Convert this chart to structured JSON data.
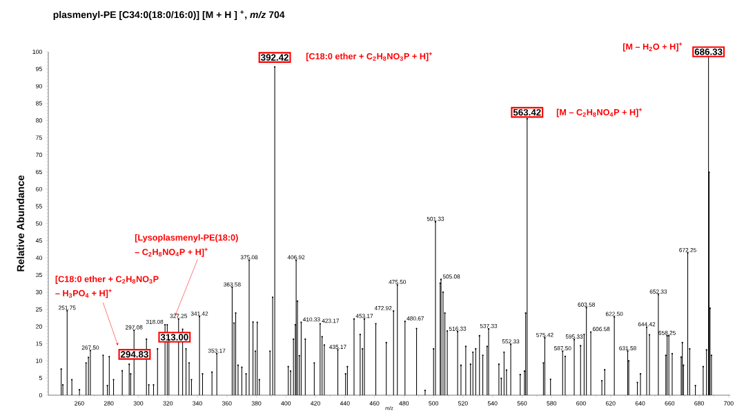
{
  "chart_data": {
    "type": "lollipop",
    "title": "plasmenyl-PE [C34:0(18:0/16:0)] [M + H ] $^{+}$, *m/z* 704",
    "xlabel": "m/z",
    "ylabel": "Relative Abundance",
    "xlim": [
      239,
      701
    ],
    "xticks": [
      260,
      280,
      300,
      320,
      340,
      360,
      380,
      400,
      420,
      440,
      460,
      480,
      500,
      520,
      540,
      560,
      580,
      600,
      620,
      640,
      660,
      680,
      700
    ],
    "ylim": [
      0,
      100
    ],
    "yticks": [
      0,
      5,
      10,
      15,
      20,
      25,
      30,
      35,
      40,
      45,
      50,
      55,
      60,
      65,
      70,
      75,
      80,
      85,
      90,
      95,
      100
    ],
    "grid": false,
    "series": [
      {
        "color": "#000000",
        "values": [
          7.6,
          3,
          24.6,
          4.5,
          1.6,
          9.4,
          11,
          13,
          11.6,
          2.8,
          11.2,
          4.5,
          7.1,
          9,
          6.2,
          18.9,
          16.3,
          3,
          3,
          13.5,
          20.5,
          20.5,
          16,
          22.2,
          19.2,
          13.5,
          9.4,
          4.5,
          22.9,
          6.2,
          6.7,
          12.1,
          31.4,
          21,
          23.9,
          8.7,
          8.1,
          6.2,
          39.3,
          21.3,
          12.8,
          21.2,
          4.5,
          12.8,
          28.5,
          95.6,
          8.3,
          7,
          16.3,
          20.5,
          39.3,
          27.4,
          11.5,
          21.2,
          16.3,
          9.4,
          20.8,
          17,
          14.6,
          13.2,
          6.2,
          8.3,
          22.2,
          17.7,
          13.5,
          22.2,
          20.8,
          15.3,
          24.5,
          32.1,
          21.5,
          19.4,
          1.4,
          13.5,
          50.5,
          32.6,
          33.7,
          30,
          23.9,
          18.7,
          18.5,
          8.7,
          14.2,
          9,
          12.5,
          13.5,
          17.3,
          11.6,
          14.2,
          19.3,
          9,
          4.9,
          12.5,
          7.3,
          14.8,
          6,
          7,
          23.9,
          80.5,
          9.4,
          16.7,
          4.6,
          12.8,
          11.3,
          16.2,
          14.4,
          17.7,
          25.5,
          18.4,
          4.2,
          7.4,
          22.8,
          12.8,
          10,
          3.7,
          6.2,
          19.8,
          17.6,
          29.3,
          11.6,
          17.3,
          17.3,
          12.1,
          11.1,
          15.3,
          8.7,
          41.4,
          13.5,
          2.8,
          8.3,
          13.2,
          100,
          64.9,
          25.3,
          11.6
        ]
      }
    ],
    "x": [
      247.74,
      248.86,
      251.75,
      254.96,
      260.1,
      264.58,
      266.19,
      267.5,
      276.13,
      279.0,
      280.3,
      283.2,
      289.1,
      293.8,
      294.83,
      297.08,
      305.5,
      307.1,
      310.3,
      313.0,
      318.08,
      319.6,
      320.7,
      327.25,
      330.0,
      332.3,
      334.4,
      336.0,
      341.42,
      343.5,
      349.9,
      353.17,
      363.58,
      364.84,
      365.96,
      367.57,
      370.13,
      373.0,
      375.08,
      377.67,
      379.28,
      380.56,
      382.0,
      389.2,
      391.0,
      392.42,
      401.56,
      403.17,
      405.09,
      406.37,
      406.92,
      407.82,
      409.1,
      410.33,
      413.11,
      419.2,
      423.17,
      424.5,
      426.0,
      435.17,
      440.4,
      441.66,
      446.15,
      450.3,
      451.9,
      453.17,
      460.9,
      468.0,
      472.92,
      475.5,
      480.67,
      488.5,
      494.3,
      500.04,
      501.33,
      504.53,
      505.08,
      506.45,
      507.7,
      509.33,
      516.33,
      518.6,
      521.85,
      525.06,
      526.7,
      528.6,
      531.15,
      533.4,
      536.3,
      537.33,
      544.3,
      545.9,
      547.8,
      549.44,
      552.33,
      558.74,
      561.63,
      562.43,
      563.42,
      574.46,
      575.42,
      579.27,
      587.5,
      589.2,
      595.33,
      599.64,
      602.05,
      603.58,
      606.58,
      614.08,
      616.0,
      622.5,
      631.58,
      632.3,
      638.13,
      640.22,
      644.42,
      646.3,
      652.33,
      657.38,
      658.25,
      659.46,
      661.71,
      667.8,
      668.6,
      669.4,
      672.25,
      673.6,
      677.43,
      682.72,
      684.97,
      686.33,
      686.73,
      687.37,
      688.33
    ],
    "annotations": [
      {
        "text": "392.42",
        "x": 392.42,
        "y": 95.6
      },
      {
        "text": "563.42",
        "x": 563.42,
        "y": 80.5
      },
      {
        "text": "686.33",
        "x": 686.33,
        "y": 100
      },
      {
        "text": "294.83",
        "x": 294.83,
        "y": 6.2
      },
      {
        "text": "313.00",
        "x": 313.0,
        "y": 13.5
      },
      "[C18:0  ether + C$_{2}$H$_{8}$NO$_{3}$P  + H]$^{+}$",
      "[M – C$_{2}$H$_{8}$NO$_{4}$P  + H]$^{+}$",
      "[M – H$_{2}$O + H]$^{+}$",
      "[Lysoplasmenyl-PE(18:0)",
      {
        "text": "– C$_{2}$H$_{8}$NO$_{4}$P  + H]$^{+}$",
        "x": 327.25,
        "y": 22.2
      },
      "[C18:0  ether + C$_{2}$H$_{8}$NO$_{3}$P",
      "– H$_{3}$PO$_{4}$ + H]$^{+}$",
      {
        "text": "251.75",
        "x": 251.75,
        "y": 24.6
      },
      {
        "text": "267.50",
        "x": 267.5,
        "y": 13
      },
      {
        "text": "297.08",
        "x": 297.08,
        "y": 18.9
      },
      {
        "text": "318.08",
        "x": 318.08,
        "y": 20.5
      },
      {
        "text": "327.25",
        "x": 327.25,
        "y": 22.2
      },
      {
        "text": "341.42",
        "x": 341.42,
        "y": 22.9
      },
      {
        "text": "353.17",
        "x": 353.17,
        "y": 12.1
      },
      {
        "text": "363.58",
        "x": 363.58,
        "y": 31.4
      },
      {
        "text": "375.08",
        "x": 375.08,
        "y": 39.3
      },
      {
        "text": "406.92",
        "x": 406.92,
        "y": 39.3
      },
      {
        "text": "410.33",
        "x": 410.33,
        "y": 21.2
      },
      {
        "text": "423.17",
        "x": 423.17,
        "y": 20.8
      },
      {
        "text": "435.17",
        "x": 435.17,
        "y": 13.2
      },
      {
        "text": "453.17",
        "x": 453.17,
        "y": 22.2
      },
      {
        "text": "472.92",
        "x": 472.92,
        "y": 24.5
      },
      {
        "text": "475.50",
        "x": 475.5,
        "y": 32.1
      },
      {
        "text": "480.67",
        "x": 480.67,
        "y": 21.5
      },
      {
        "text": "501.33",
        "x": 501.33,
        "y": 50.5
      },
      {
        "text": "505.08",
        "x": 505.08,
        "y": 33.7
      },
      {
        "text": "516.33",
        "x": 516.33,
        "y": 18.5
      },
      {
        "text": "537.33",
        "x": 537.33,
        "y": 19.3
      },
      {
        "text": "552.33",
        "x": 552.33,
        "y": 14.8
      },
      {
        "text": "575.42",
        "x": 575.42,
        "y": 16.7
      },
      {
        "text": "587.50",
        "x": 587.5,
        "y": 12.8
      },
      {
        "text": "595.33",
        "x": 595.33,
        "y": 16.2
      },
      {
        "text": "603.58",
        "x": 603.58,
        "y": 25.5
      },
      {
        "text": "606.58",
        "x": 606.58,
        "y": 18.4
      },
      {
        "text": "622.50",
        "x": 622.5,
        "y": 22.8
      },
      {
        "text": "631.58",
        "x": 631.58,
        "y": 12.8
      },
      {
        "text": "644.42",
        "x": 644.42,
        "y": 19.8
      },
      {
        "text": "652.33",
        "x": 652.33,
        "y": 29.3
      },
      {
        "text": "658.25",
        "x": 658.25,
        "y": 17.3
      },
      {
        "text": "672.25",
        "x": 672.25,
        "y": 41.4
      }
    ]
  }
}
